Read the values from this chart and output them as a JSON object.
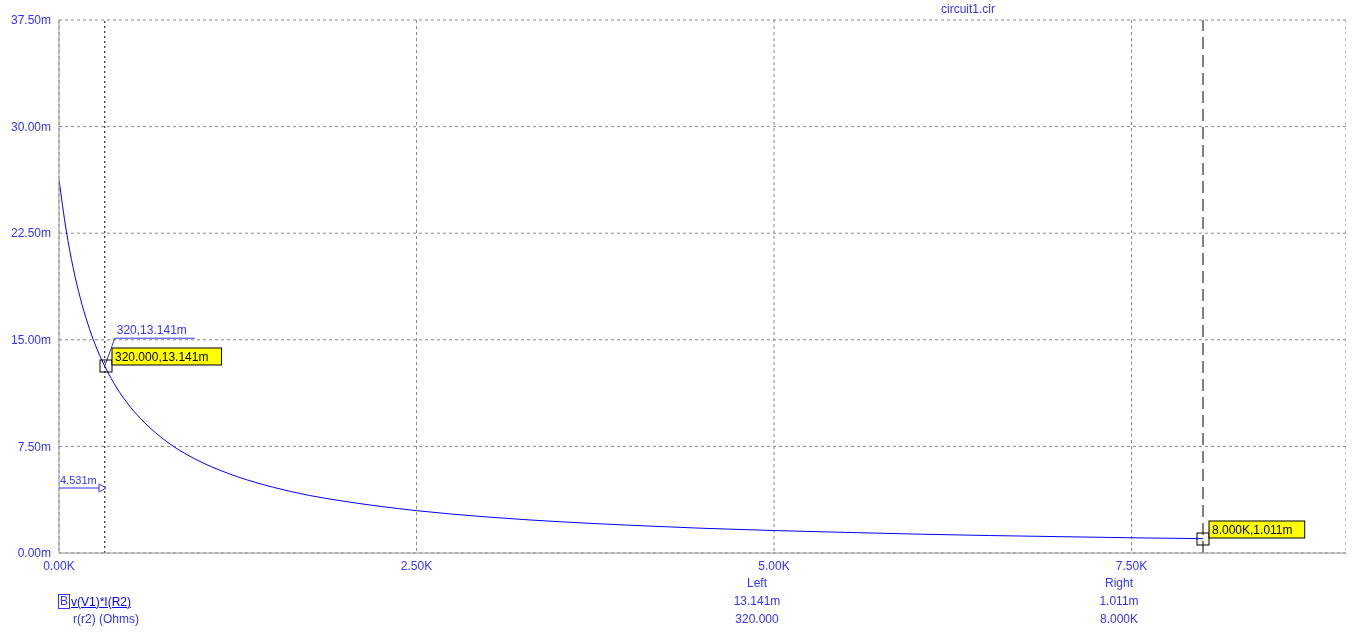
{
  "chart_data": {
    "type": "line",
    "title": "circuit1.cir",
    "xlabel": "r(r2) (Ohms)",
    "x": [
      0,
      50,
      100,
      150,
      200,
      250,
      320,
      400,
      500,
      600,
      750,
      900,
      1000,
      1250,
      1500,
      1750,
      2000,
      2500,
      3000,
      3500,
      4000,
      4500,
      5000,
      5500,
      6000,
      6500,
      7000,
      7500,
      8000
    ],
    "series": [
      {
        "name": "v(V1)*I(R2)",
        "color": "#0000ff",
        "values": [
          26.28,
          22.73,
          20.02,
          17.89,
          16.17,
          14.74,
          13.14,
          11.68,
          10.26,
          9.16,
          7.86,
          6.89,
          6.37,
          5.36,
          4.62,
          4.05,
          3.63,
          2.98,
          2.53,
          2.2,
          1.95,
          1.74,
          1.58,
          1.45,
          1.33,
          1.23,
          1.15,
          1.07,
          1.01
        ]
      }
    ],
    "xlim": [
      0,
      9000
    ],
    "xticks": [
      {
        "value": 0,
        "label": "0.00K"
      },
      {
        "value": 2500,
        "label": "2.50K"
      },
      {
        "value": 5000,
        "label": "5.00K"
      },
      {
        "value": 7500,
        "label": "7.50K"
      }
    ],
    "ylim": [
      0,
      37.5
    ],
    "yticks": [
      {
        "value": 0,
        "label": "0.00m"
      },
      {
        "value": 7.5,
        "label": "7.50m"
      },
      {
        "value": 15,
        "label": "15.00m"
      },
      {
        "value": 22.5,
        "label": "22.50m"
      },
      {
        "value": 30,
        "label": "30.00m"
      },
      {
        "value": 37.5,
        "label": "37.50m"
      }
    ],
    "grid": true,
    "legend": "bottom left",
    "line_style": "solid",
    "marker": "none",
    "ref_lines": [
      {
        "axis": "x",
        "value": 320,
        "color": "#000000",
        "line_style": "dotted"
      },
      {
        "axis": "x",
        "value": 8000,
        "color": "#000000",
        "line_style": "dashed"
      }
    ],
    "annotations": [
      {
        "text": "320,13.141m",
        "x": 320,
        "y": 13.141
      },
      "320.000,13.141m",
      "8.000K,1.011m",
      "4.531m",
      "B",
      "Left",
      "Right",
      "13.141m",
      "1.011m",
      "320.000",
      "8.000K"
    ]
  }
}
